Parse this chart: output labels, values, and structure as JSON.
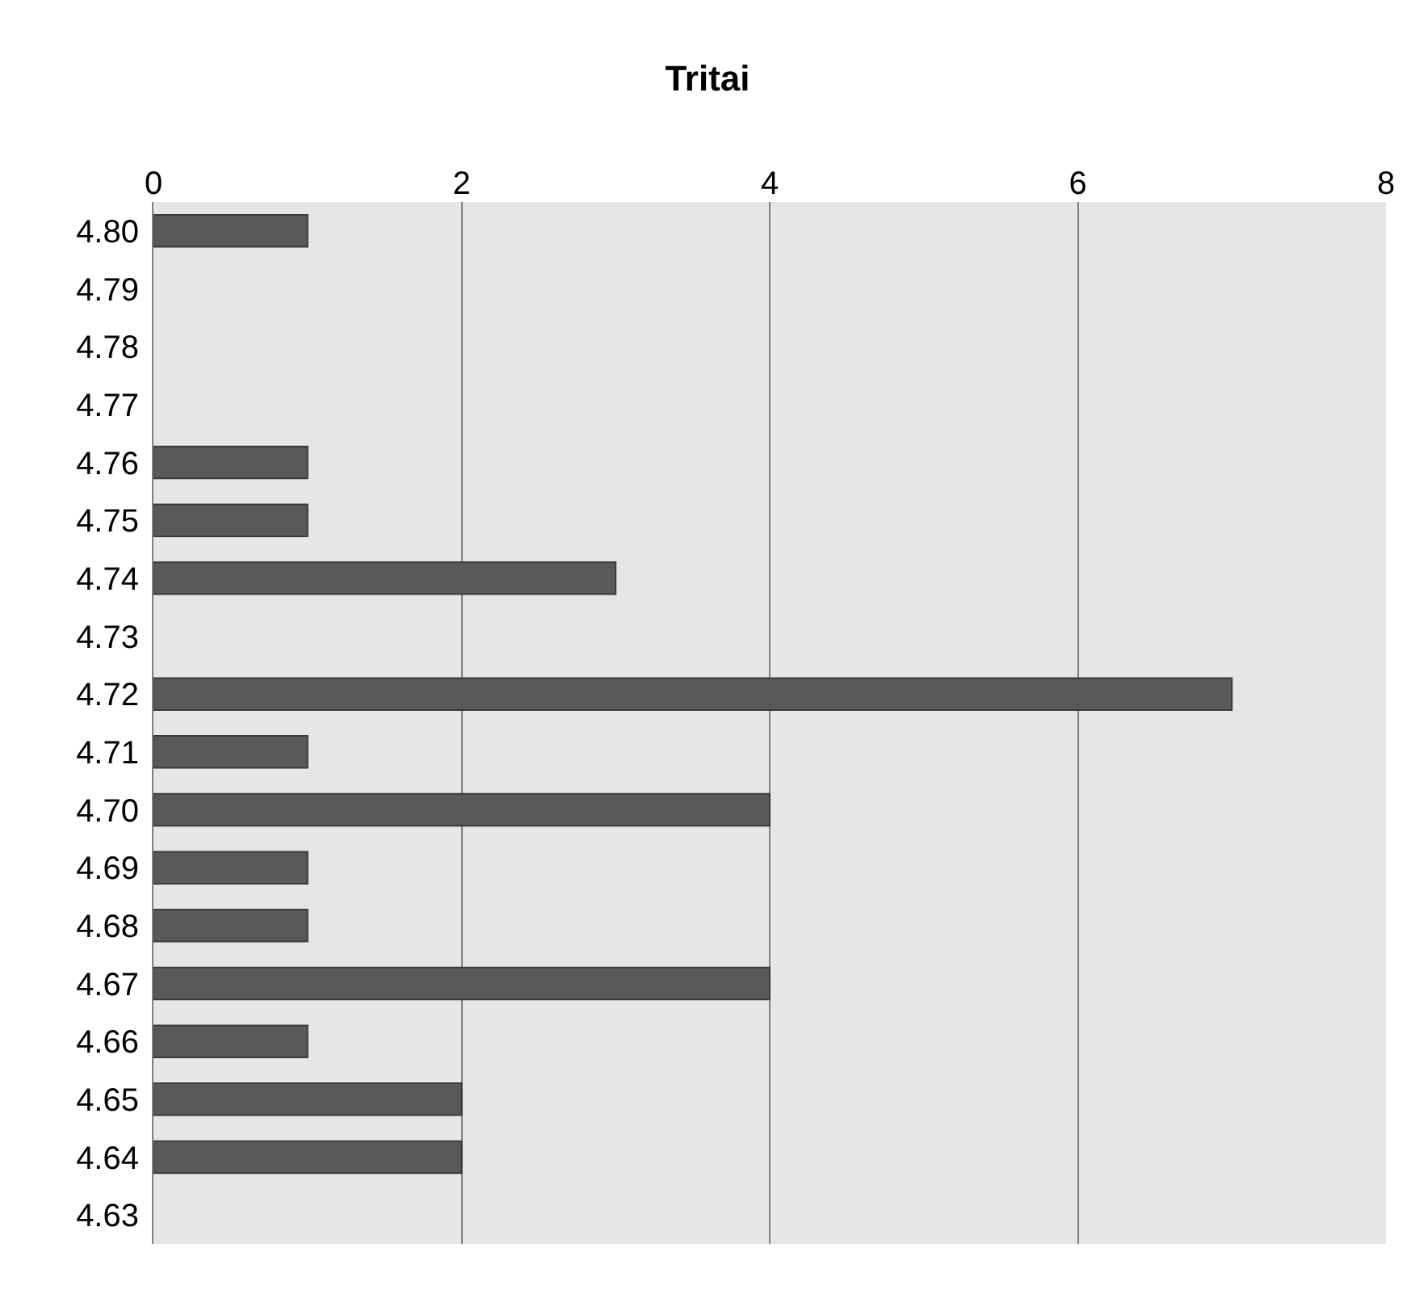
{
  "chart_data": {
    "type": "bar",
    "orientation": "horizontal",
    "title": "Tritai",
    "categories": [
      "4.80",
      "4.79",
      "4.78",
      "4.77",
      "4.76",
      "4.75",
      "4.74",
      "4.73",
      "4.72",
      "4.71",
      "4.70",
      "4.69",
      "4.68",
      "4.67",
      "4.66",
      "4.65",
      "4.64",
      "4.63"
    ],
    "values": [
      1,
      0,
      0,
      0,
      1,
      1,
      3,
      0,
      7,
      1,
      4,
      1,
      1,
      4,
      1,
      2,
      2,
      0
    ],
    "color": "#595959",
    "xlim": [
      0,
      8
    ],
    "xticks": [
      0,
      2,
      4,
      6,
      8
    ],
    "grid": "x",
    "legend": false
  }
}
